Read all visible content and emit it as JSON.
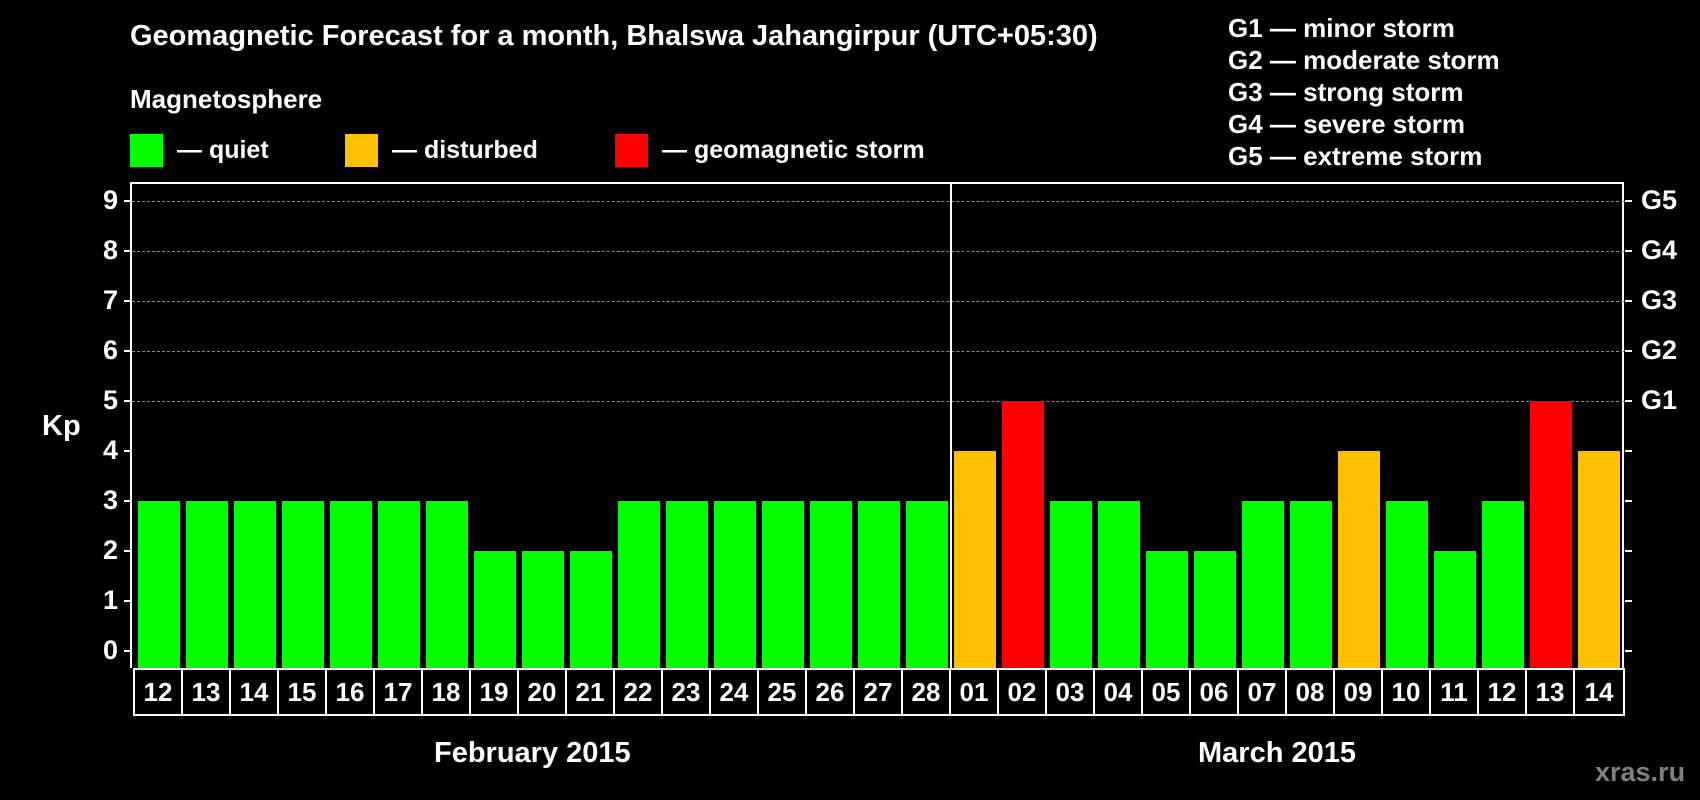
{
  "header": {
    "title": "Geomagnetic Forecast for a month, Bhalswa Jahangirpur (UTC+05:30)",
    "subtitle": "Magnetosphere"
  },
  "legend": [
    {
      "label": "— quiet",
      "color": "#00ff00"
    },
    {
      "label": "— disturbed",
      "color": "#ffc000"
    },
    {
      "label": "— geomagnetic storm",
      "color": "#ff0000"
    }
  ],
  "g_scale": [
    "G1 — minor storm",
    "G2 — moderate storm",
    "G3 — strong storm",
    "G4 — severe storm",
    "G5 — extreme storm"
  ],
  "axis": {
    "ylabel": "Kp",
    "yticks": [
      "0",
      "1",
      "2",
      "3",
      "4",
      "5",
      "6",
      "7",
      "8",
      "9"
    ],
    "right_labels": [
      {
        "kp": 5,
        "label": "G1"
      },
      {
        "kp": 6,
        "label": "G2"
      },
      {
        "kp": 7,
        "label": "G3"
      },
      {
        "kp": 8,
        "label": "G4"
      },
      {
        "kp": 9,
        "label": "G5"
      }
    ]
  },
  "months": {
    "first": "February 2015",
    "second": "March 2015"
  },
  "watermark": "xras.ru",
  "colors": {
    "quiet": "#00ff00",
    "disturbed": "#ffc000",
    "storm": "#ff0000",
    "background": "#000000",
    "grid": "#8a8a8a"
  },
  "chart_data": {
    "type": "bar",
    "title": "Geomagnetic Forecast for a month, Bhalswa Jahangirpur (UTC+05:30)",
    "xlabel": "February 2015 / March 2015",
    "ylabel": "Kp",
    "ylim": [
      0,
      9
    ],
    "grid": true,
    "categories": [
      "12",
      "13",
      "14",
      "15",
      "16",
      "17",
      "18",
      "19",
      "20",
      "21",
      "22",
      "23",
      "24",
      "25",
      "26",
      "27",
      "28",
      "01",
      "02",
      "03",
      "04",
      "05",
      "06",
      "07",
      "08",
      "09",
      "10",
      "11",
      "12",
      "13",
      "14"
    ],
    "values": [
      3,
      3,
      3,
      3,
      3,
      3,
      3,
      2,
      2,
      2,
      3,
      3,
      3,
      3,
      3,
      3,
      3,
      4,
      5,
      3,
      3,
      2,
      2,
      3,
      3,
      4,
      3,
      2,
      3,
      5,
      4
    ],
    "status": [
      "quiet",
      "quiet",
      "quiet",
      "quiet",
      "quiet",
      "quiet",
      "quiet",
      "quiet",
      "quiet",
      "quiet",
      "quiet",
      "quiet",
      "quiet",
      "quiet",
      "quiet",
      "quiet",
      "quiet",
      "disturbed",
      "storm",
      "quiet",
      "quiet",
      "quiet",
      "quiet",
      "quiet",
      "quiet",
      "disturbed",
      "quiet",
      "quiet",
      "quiet",
      "storm",
      "disturbed"
    ],
    "legend": [
      "quiet",
      "disturbed",
      "geomagnetic storm"
    ],
    "secondary_axis": {
      "G1": 5,
      "G2": 6,
      "G3": 7,
      "G4": 8,
      "G5": 9
    }
  }
}
